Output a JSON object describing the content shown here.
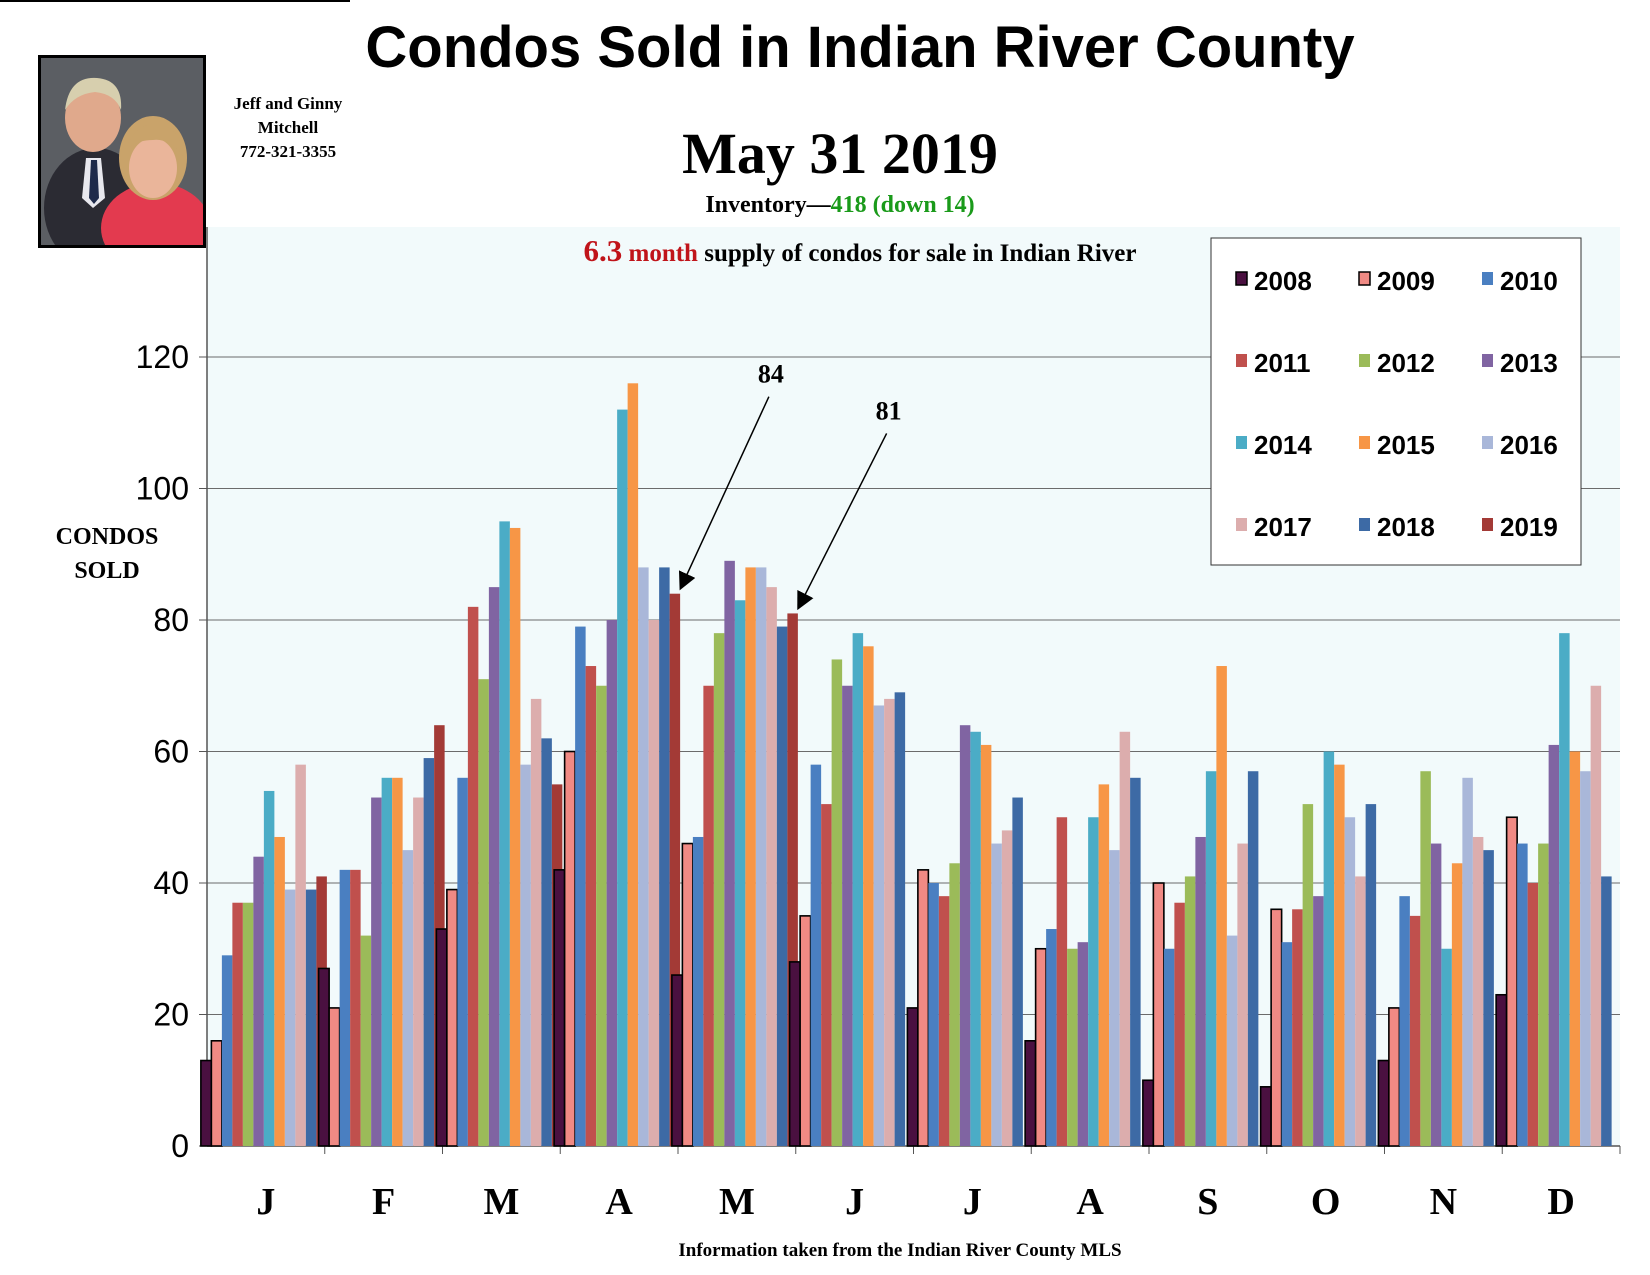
{
  "header": {
    "title": "Condos Sold in Indian River County",
    "date": "May 31 2019",
    "inventory_label": "Inventory—",
    "inventory_value": "418 (down 14)",
    "supply_number": "6.3",
    "supply_unit": "month",
    "supply_text": "supply of condos for sale in Indian River"
  },
  "agent": {
    "line1": "Jeff and Ginny",
    "line2": "Mitchell",
    "phone": "772-321-3355"
  },
  "axis": {
    "ylabel_line1": "CONDOS",
    "ylabel_line2": "SOLD"
  },
  "footnote": "Information taken from the Indian River County MLS",
  "colors": {
    "2008": "#4a1040",
    "2009": "#f08a84",
    "2010": "#4a7fc1",
    "2011": "#c0504d",
    "2012": "#9bbb59",
    "2013": "#8064a2",
    "2014": "#4bacc6",
    "2015": "#f79646",
    "2016": "#a9b7d9",
    "2017": "#dcadad",
    "2018": "#3d6aa5",
    "2019": "#a33a36",
    "plot_bg": "#f2fafb",
    "grid": "#6b6b6b"
  },
  "chart_data": {
    "type": "bar",
    "categories": [
      "J",
      "F",
      "M",
      "A",
      "M",
      "J",
      "J",
      "A",
      "S",
      "O",
      "N",
      "D"
    ],
    "ylim": [
      0,
      120
    ],
    "yticks": [
      0,
      20,
      40,
      60,
      80,
      100,
      120
    ],
    "grid": true,
    "legend": "top-right",
    "series": [
      {
        "name": "2008",
        "values": [
          13,
          27,
          33,
          42,
          26,
          28,
          21,
          16,
          10,
          9,
          13,
          23
        ]
      },
      {
        "name": "2009",
        "values": [
          16,
          21,
          39,
          60,
          46,
          35,
          42,
          30,
          40,
          36,
          21,
          50
        ]
      },
      {
        "name": "2010",
        "values": [
          29,
          42,
          56,
          79,
          47,
          58,
          40,
          33,
          30,
          31,
          38,
          46
        ]
      },
      {
        "name": "2011",
        "values": [
          37,
          42,
          82,
          73,
          70,
          52,
          38,
          50,
          37,
          36,
          35,
          40
        ]
      },
      {
        "name": "2012",
        "values": [
          37,
          32,
          71,
          70,
          78,
          74,
          43,
          30,
          41,
          52,
          57,
          46
        ]
      },
      {
        "name": "2013",
        "values": [
          44,
          53,
          85,
          80,
          89,
          70,
          64,
          31,
          47,
          38,
          46,
          61
        ]
      },
      {
        "name": "2014",
        "values": [
          54,
          56,
          95,
          112,
          83,
          78,
          63,
          50,
          57,
          60,
          30,
          78
        ]
      },
      {
        "name": "2015",
        "values": [
          47,
          56,
          94,
          116,
          88,
          76,
          61,
          55,
          73,
          58,
          43,
          60
        ]
      },
      {
        "name": "2016",
        "values": [
          39,
          45,
          58,
          88,
          88,
          67,
          46,
          45,
          32,
          50,
          56,
          57
        ]
      },
      {
        "name": "2017",
        "values": [
          58,
          53,
          68,
          80,
          85,
          68,
          48,
          63,
          46,
          41,
          47,
          70
        ]
      },
      {
        "name": "2018",
        "values": [
          39,
          59,
          62,
          88,
          79,
          69,
          53,
          56,
          57,
          52,
          45,
          41
        ]
      },
      {
        "name": "2019",
        "values": [
          41,
          64,
          55,
          84,
          81,
          null,
          null,
          null,
          null,
          null,
          null,
          null
        ]
      }
    ],
    "annotations": [
      {
        "text": "84",
        "month_index": 3,
        "value": 84
      },
      {
        "text": "81",
        "month_index": 4,
        "value": 81
      }
    ]
  }
}
